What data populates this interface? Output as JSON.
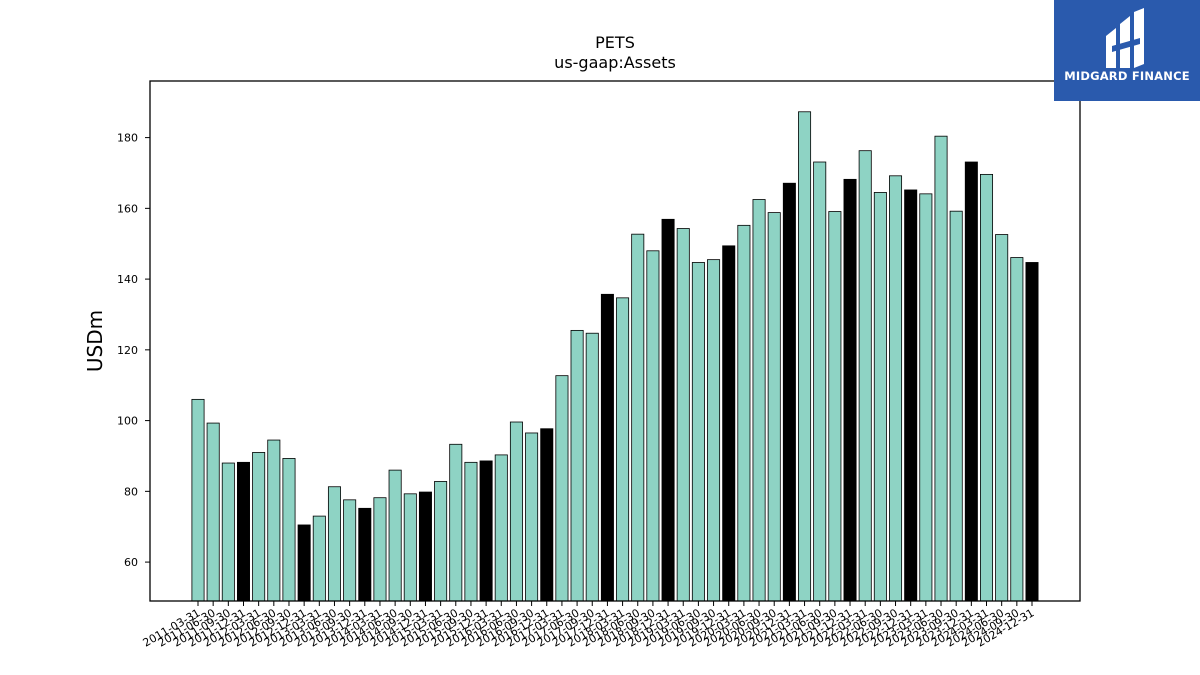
{
  "chart_data": {
    "type": "bar",
    "title": "PETS",
    "subtitle": "us-gaap:Assets",
    "ylabel": "USDm",
    "xlabel": "",
    "ylim": [
      49,
      196
    ],
    "yticks": [
      60,
      80,
      100,
      120,
      140,
      160,
      180
    ],
    "grid": false,
    "colors": {
      "regular": "#8ed3c4",
      "year_end": "#000000",
      "edge": "#000000"
    },
    "categories": [
      "2011-03-31",
      "2011-06-30",
      "2011-09-30",
      "2011-12-31",
      "2012-03-31",
      "2012-06-30",
      "2012-09-30",
      "2012-12-31",
      "2013-03-31",
      "2013-06-30",
      "2013-09-30",
      "2013-12-31",
      "2014-03-31",
      "2014-06-30",
      "2014-09-30",
      "2014-12-31",
      "2015-03-31",
      "2015-06-30",
      "2015-09-30",
      "2015-12-31",
      "2016-03-31",
      "2016-06-30",
      "2016-09-30",
      "2016-12-31",
      "2017-03-31",
      "2017-06-30",
      "2017-09-30",
      "2017-12-31",
      "2018-03-31",
      "2018-06-30",
      "2018-09-30",
      "2018-12-31",
      "2019-03-31",
      "2019-06-30",
      "2019-09-30",
      "2019-12-31",
      "2020-03-31",
      "2020-06-30",
      "2020-09-30",
      "2020-12-31",
      "2021-03-31",
      "2021-06-30",
      "2021-09-30",
      "2021-12-31",
      "2022-03-31",
      "2022-06-30",
      "2022-09-30",
      "2022-12-31",
      "2023-03-31",
      "2023-06-30",
      "2023-09-30",
      "2023-12-31",
      "2024-03-31",
      "2024-06-30",
      "2024-09-30",
      "2024-12-31"
    ],
    "values": [
      106,
      99.3,
      88,
      88.2,
      91,
      94.5,
      89.3,
      70.5,
      73,
      81.3,
      77.6,
      75.2,
      78.2,
      86,
      79.3,
      79.8,
      82.8,
      93.3,
      88.2,
      88.6,
      90.3,
      99.6,
      96.5,
      97.7,
      112.7,
      125.5,
      124.7,
      135.7,
      134.7,
      152.7,
      148,
      156.9,
      154.3,
      144.7,
      145.5,
      149.4,
      155.2,
      162.5,
      158.8,
      167.1,
      187.3,
      173.1,
      159.1,
      168.2,
      176.3,
      164.5,
      169.2,
      165.2,
      164.1,
      180.4,
      159.2,
      173.1,
      169.6,
      152.6,
      146.1,
      144.7
    ],
    "highlight": [
      false,
      false,
      false,
      true,
      false,
      false,
      false,
      true,
      false,
      false,
      false,
      true,
      false,
      false,
      false,
      true,
      false,
      false,
      false,
      true,
      false,
      false,
      false,
      true,
      false,
      false,
      false,
      true,
      false,
      false,
      false,
      true,
      false,
      false,
      false,
      true,
      false,
      false,
      false,
      true,
      false,
      false,
      false,
      true,
      false,
      false,
      false,
      true,
      false,
      false,
      false,
      true,
      false,
      false,
      false,
      true
    ]
  },
  "logo": {
    "text": "MIDGARD FINANCE"
  }
}
